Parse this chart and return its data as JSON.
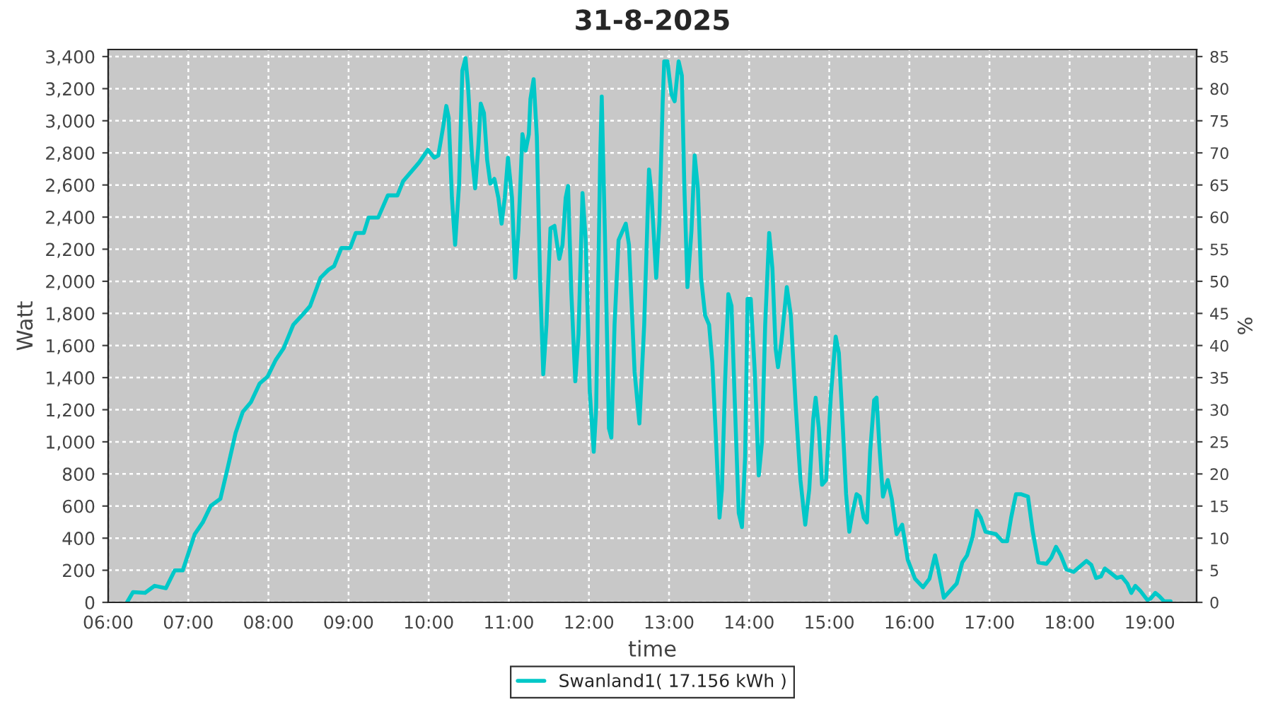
{
  "chart_data": {
    "type": "line",
    "title": "31-8-2025",
    "xlabel": "time",
    "ylabel": "Watt",
    "y2label": "%",
    "x": [
      6.235,
      6.31,
      6.46,
      6.58,
      6.72,
      6.83,
      6.93,
      7.08,
      7.18,
      7.28,
      7.4,
      7.49,
      7.59,
      7.68,
      7.78,
      7.89,
      7.99,
      8.09,
      8.19,
      8.31,
      8.43,
      8.52,
      8.65,
      8.75,
      8.82,
      8.91,
      9.02,
      9.09,
      9.19,
      9.25,
      9.37,
      9.49,
      9.61,
      9.68,
      9.88,
      9.99,
      10.07,
      10.12,
      10.18,
      10.22,
      10.25,
      10.29,
      10.33,
      10.38,
      10.42,
      10.46,
      10.49,
      10.54,
      10.58,
      10.62,
      10.65,
      10.69,
      10.73,
      10.77,
      10.82,
      10.87,
      10.91,
      10.95,
      10.99,
      11.04,
      11.08,
      11.12,
      11.17,
      11.21,
      11.25,
      11.27,
      11.31,
      11.35,
      11.39,
      11.43,
      11.47,
      11.52,
      11.57,
      11.63,
      11.67,
      11.71,
      11.74,
      11.78,
      11.83,
      11.87,
      11.92,
      11.96,
      12.01,
      12.06,
      12.09,
      12.14,
      12.16,
      12.2,
      12.25,
      12.28,
      12.32,
      12.37,
      12.46,
      12.5,
      12.57,
      12.63,
      12.69,
      12.75,
      12.78,
      12.84,
      12.88,
      12.92,
      12.94,
      12.98,
      13.03,
      13.07,
      13.12,
      13.16,
      13.19,
      13.23,
      13.28,
      13.32,
      13.36,
      13.4,
      13.45,
      13.5,
      13.54,
      13.58,
      13.63,
      13.66,
      13.7,
      13.74,
      13.78,
      13.82,
      13.87,
      13.91,
      13.95,
      13.98,
      14.02,
      14.07,
      14.12,
      14.16,
      14.2,
      14.25,
      14.29,
      14.33,
      14.36,
      14.4,
      14.47,
      14.52,
      14.58,
      14.64,
      14.7,
      14.75,
      14.8,
      14.83,
      14.87,
      14.91,
      14.96,
      15.02,
      15.08,
      15.12,
      15.17,
      15.21,
      15.25,
      15.29,
      15.34,
      15.38,
      15.43,
      15.47,
      15.51,
      15.56,
      15.59,
      15.63,
      15.67,
      15.73,
      15.78,
      15.84,
      15.91,
      15.98,
      16.07,
      16.17,
      16.25,
      16.32,
      16.36,
      16.43,
      16.51,
      16.59,
      16.66,
      16.72,
      16.79,
      16.84,
      16.89,
      16.95,
      17.08,
      17.16,
      17.22,
      17.27,
      17.33,
      17.39,
      17.48,
      17.54,
      17.61,
      17.71,
      17.77,
      17.83,
      17.89,
      17.96,
      18.05,
      18.12,
      18.21,
      18.27,
      18.33,
      18.39,
      18.44,
      18.53,
      18.59,
      18.65,
      18.72,
      18.77,
      18.82,
      18.88,
      18.97,
      19.01,
      19.07,
      19.12,
      19.18,
      19.26
    ],
    "series": [
      {
        "name": "Swanland1( 17.156 kWh )",
        "color": "#00c8c8",
        "values": [
          0,
          64,
          59,
          103,
          88,
          199,
          199,
          425,
          498,
          601,
          645,
          835,
          1055,
          1187,
          1246,
          1363,
          1407,
          1509,
          1583,
          1729,
          1794,
          1846,
          2022,
          2072,
          2095,
          2207,
          2207,
          2301,
          2301,
          2397,
          2397,
          2535,
          2535,
          2623,
          2740,
          2819,
          2770,
          2784,
          2960,
          3092,
          3019,
          2520,
          2227,
          2608,
          3312,
          3390,
          3224,
          2784,
          2579,
          2843,
          3107,
          3048,
          2755,
          2608,
          2638,
          2520,
          2359,
          2520,
          2770,
          2520,
          2022,
          2315,
          2916,
          2814,
          2916,
          3136,
          3259,
          2902,
          2022,
          1421,
          1729,
          2330,
          2345,
          2140,
          2227,
          2520,
          2594,
          1934,
          1377,
          1671,
          2550,
          2257,
          1319,
          938,
          1202,
          2755,
          3151,
          2286,
          1084,
          1026,
          1729,
          2257,
          2359,
          2227,
          1436,
          1114,
          1729,
          2696,
          2550,
          2022,
          2374,
          3107,
          3370,
          3370,
          3165,
          3121,
          3370,
          3282,
          2608,
          1964,
          2315,
          2784,
          2579,
          2022,
          1788,
          1729,
          1495,
          1084,
          528,
          703,
          1377,
          1920,
          1846,
          1260,
          557,
          469,
          909,
          1890,
          1890,
          1436,
          791,
          996,
          1729,
          2301,
          2081,
          1583,
          1465,
          1612,
          1964,
          1788,
          1231,
          762,
          484,
          703,
          1143,
          1275,
          1084,
          733,
          762,
          1290,
          1656,
          1553,
          1084,
          674,
          440,
          557,
          674,
          659,
          528,
          498,
          938,
          1260,
          1275,
          938,
          659,
          762,
          645,
          425,
          484,
          264,
          147,
          94,
          147,
          293,
          205,
          29,
          73,
          117,
          249,
          293,
          410,
          571,
          528,
          440,
          425,
          381,
          381,
          528,
          674,
          674,
          659,
          440,
          249,
          240,
          278,
          346,
          293,
          205,
          190,
          220,
          258,
          234,
          152,
          161,
          211,
          176,
          152,
          161,
          117,
          59,
          103,
          73,
          15,
          23,
          59,
          38,
          6,
          6
        ]
      }
    ],
    "xlim": [
      6,
      19.585
    ],
    "ylim": [
      0,
      3444
    ],
    "y2lim": [
      0,
      86.1
    ],
    "xticks": [
      {
        "value": 6,
        "label": "06:00"
      },
      {
        "value": 7,
        "label": "07:00"
      },
      {
        "value": 8,
        "label": "08:00"
      },
      {
        "value": 9,
        "label": "09:00"
      },
      {
        "value": 10,
        "label": "10:00"
      },
      {
        "value": 11,
        "label": "11:00"
      },
      {
        "value": 12,
        "label": "12:00"
      },
      {
        "value": 13,
        "label": "13:00"
      },
      {
        "value": 14,
        "label": "14:00"
      },
      {
        "value": 15,
        "label": "15:00"
      },
      {
        "value": 16,
        "label": "16:00"
      },
      {
        "value": 17,
        "label": "17:00"
      },
      {
        "value": 18,
        "label": "18:00"
      },
      {
        "value": 19,
        "label": "19:00"
      }
    ],
    "yticks": [
      0,
      200,
      400,
      600,
      800,
      {
        "value": 1000,
        "label": "1,000"
      },
      {
        "value": 1200,
        "label": "1,200"
      },
      {
        "value": 1400,
        "label": "1,400"
      },
      {
        "value": 1600,
        "label": "1,600"
      },
      {
        "value": 1800,
        "label": "1,800"
      },
      {
        "value": 2000,
        "label": "2,000"
      },
      {
        "value": 2200,
        "label": "2,200"
      },
      {
        "value": 2400,
        "label": "2,400"
      },
      {
        "value": 2600,
        "label": "2,600"
      },
      {
        "value": 2800,
        "label": "2,800"
      },
      {
        "value": 3000,
        "label": "3,000"
      },
      {
        "value": 3200,
        "label": "3,200"
      },
      {
        "value": 3400,
        "label": "3,400"
      }
    ],
    "y2ticks": [
      0,
      5,
      10,
      15,
      20,
      25,
      30,
      35,
      40,
      45,
      50,
      55,
      60,
      65,
      70,
      75,
      80,
      85
    ],
    "grid": true,
    "legend": "bottom",
    "marker": "none",
    "line_style": "solid"
  }
}
